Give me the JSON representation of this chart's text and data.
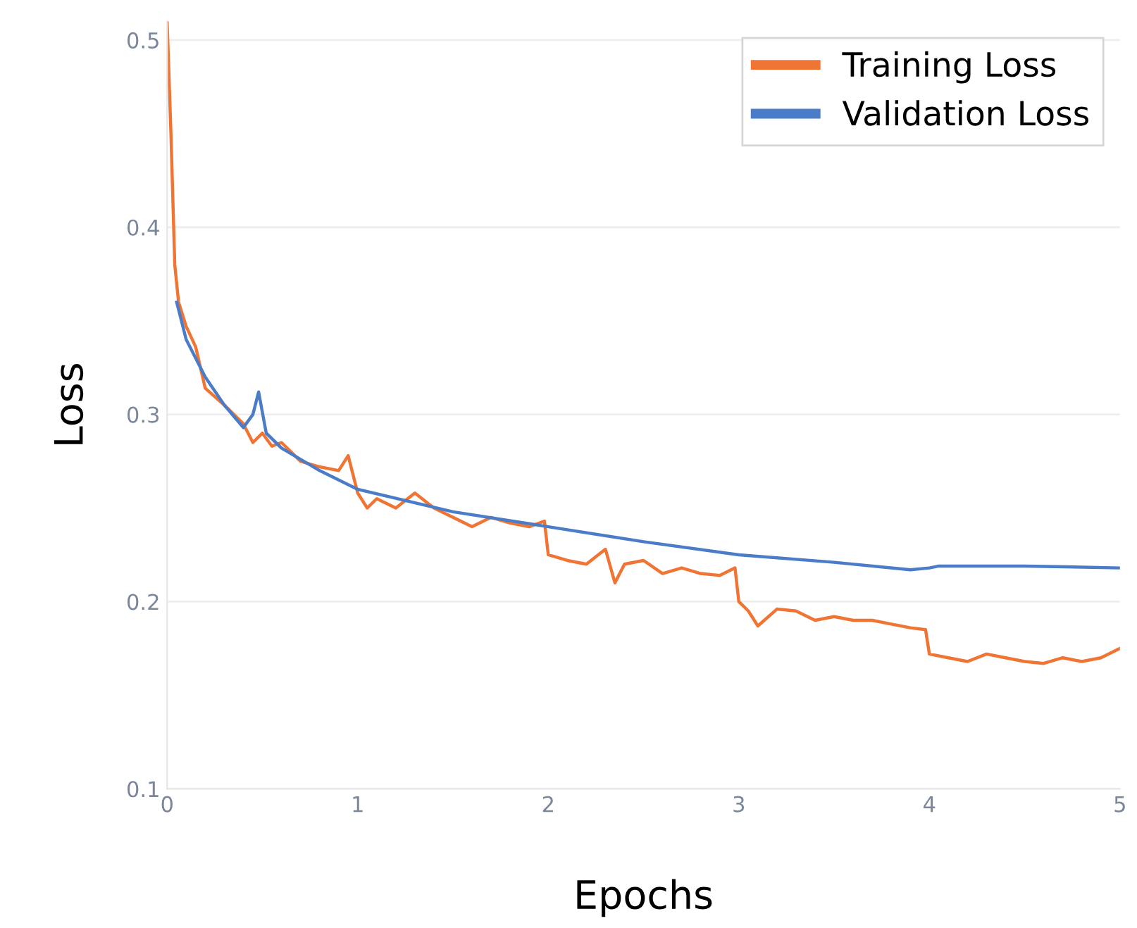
{
  "chart_data": {
    "type": "line",
    "xlabel": "Epochs",
    "ylabel": "Loss",
    "xlim": [
      0,
      5
    ],
    "ylim": [
      0.1,
      0.51
    ],
    "xticks": [
      0,
      1,
      2,
      3,
      4,
      5
    ],
    "yticks": [
      0.1,
      0.2,
      0.3,
      0.4,
      0.5
    ],
    "grid": "y",
    "legend": "top right",
    "series": [
      {
        "name": "Training Loss",
        "color": "#f07434",
        "x": [
          0.0,
          0.02,
          0.04,
          0.06,
          0.1,
          0.15,
          0.2,
          0.3,
          0.4,
          0.45,
          0.5,
          0.55,
          0.6,
          0.7,
          0.8,
          0.9,
          0.95,
          1.0,
          1.05,
          1.1,
          1.2,
          1.3,
          1.4,
          1.5,
          1.6,
          1.7,
          1.8,
          1.9,
          1.98,
          2.0,
          2.1,
          2.2,
          2.3,
          2.35,
          2.4,
          2.5,
          2.6,
          2.7,
          2.8,
          2.9,
          2.98,
          3.0,
          3.05,
          3.1,
          3.2,
          3.3,
          3.4,
          3.5,
          3.6,
          3.7,
          3.8,
          3.9,
          3.98,
          4.0,
          4.1,
          4.2,
          4.3,
          4.4,
          4.5,
          4.6,
          4.7,
          4.8,
          4.9,
          5.0
        ],
        "values": [
          0.51,
          0.45,
          0.38,
          0.36,
          0.347,
          0.336,
          0.314,
          0.305,
          0.295,
          0.285,
          0.29,
          0.283,
          0.285,
          0.275,
          0.272,
          0.27,
          0.278,
          0.258,
          0.25,
          0.255,
          0.25,
          0.258,
          0.25,
          0.245,
          0.24,
          0.245,
          0.242,
          0.24,
          0.243,
          0.225,
          0.222,
          0.22,
          0.228,
          0.21,
          0.22,
          0.222,
          0.215,
          0.218,
          0.215,
          0.214,
          0.218,
          0.2,
          0.195,
          0.187,
          0.196,
          0.195,
          0.19,
          0.192,
          0.19,
          0.19,
          0.188,
          0.186,
          0.185,
          0.172,
          0.17,
          0.168,
          0.172,
          0.17,
          0.168,
          0.167,
          0.17,
          0.168,
          0.17,
          0.175
        ]
      },
      {
        "name": "Validation Loss",
        "color": "#4a7cc8",
        "x": [
          0.05,
          0.1,
          0.2,
          0.3,
          0.4,
          0.45,
          0.48,
          0.52,
          0.6,
          0.8,
          1.0,
          1.5,
          2.0,
          2.5,
          3.0,
          3.5,
          3.9,
          4.0,
          4.05,
          4.5,
          5.0
        ],
        "values": [
          0.36,
          0.34,
          0.32,
          0.305,
          0.293,
          0.3,
          0.312,
          0.29,
          0.282,
          0.27,
          0.26,
          0.248,
          0.24,
          0.232,
          0.225,
          0.221,
          0.217,
          0.218,
          0.219,
          0.219,
          0.218
        ]
      }
    ]
  }
}
